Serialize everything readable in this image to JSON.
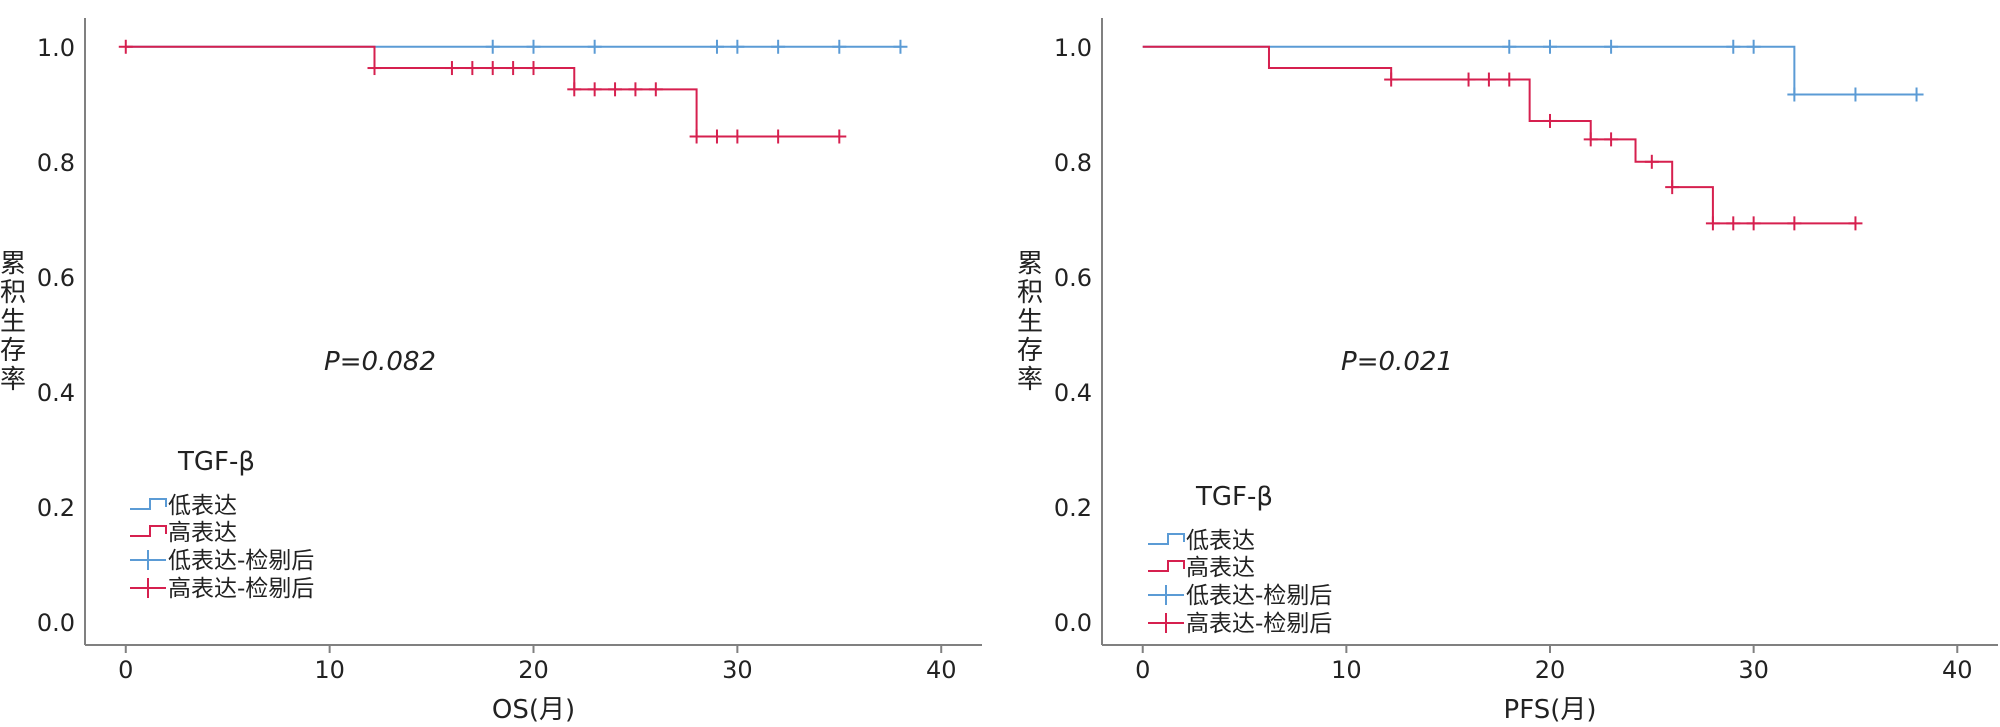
{
  "colors": {
    "low": "#5B9BD5",
    "high": "#D6204F",
    "axis": "#808080",
    "text": "#222222"
  },
  "chart_data": [
    {
      "type": "line",
      "subtype": "kaplan-meier",
      "title": "",
      "xlabel": "OS(月)",
      "ylabel": "累积生存率",
      "xlim": [
        -2,
        42
      ],
      "ylim": [
        -0.04,
        1.05
      ],
      "xticks": [
        "0",
        "10",
        "20",
        "30",
        "40"
      ],
      "yticks": [
        "0.0",
        "0.2",
        "0.4",
        "0.6",
        "0.8",
        "1.0"
      ],
      "pvalue_text": "P=0.082",
      "legend_title": "TGF-β",
      "legend_position": "bottom-left",
      "legend": [
        "低表达",
        "高表达",
        "低表达-检剔后",
        "高表达-检剔后"
      ],
      "series": [
        {
          "name": "低表达",
          "color_key": "low",
          "steps": [
            [
              0,
              1.0
            ],
            [
              38,
              1.0
            ]
          ],
          "censored": [
            [
              18,
              1.0
            ],
            [
              20,
              1.0
            ],
            [
              23,
              1.0
            ],
            [
              29,
              1.0
            ],
            [
              30,
              1.0
            ],
            [
              32,
              1.0
            ],
            [
              35,
              1.0
            ],
            [
              38,
              1.0
            ]
          ]
        },
        {
          "name": "高表达",
          "color_key": "high",
          "steps": [
            [
              0,
              1.0
            ],
            [
              12.2,
              0.963
            ],
            [
              22,
              0.926
            ],
            [
              28,
              0.844
            ],
            [
              35,
              0.844
            ]
          ],
          "censored": [
            [
              0,
              1.0
            ],
            [
              12.2,
              0.963
            ],
            [
              16,
              0.963
            ],
            [
              17,
              0.963
            ],
            [
              18,
              0.963
            ],
            [
              19,
              0.963
            ],
            [
              20,
              0.963
            ],
            [
              22,
              0.926
            ],
            [
              23,
              0.926
            ],
            [
              24,
              0.926
            ],
            [
              25,
              0.926
            ],
            [
              26,
              0.926
            ],
            [
              28,
              0.844
            ],
            [
              29,
              0.844
            ],
            [
              30,
              0.844
            ],
            [
              32,
              0.844
            ],
            [
              35,
              0.844
            ]
          ]
        }
      ]
    },
    {
      "type": "line",
      "subtype": "kaplan-meier",
      "title": "",
      "xlabel": "PFS(月)",
      "ylabel": "累积生存率",
      "xlim": [
        -2,
        42
      ],
      "ylim": [
        -0.04,
        1.05
      ],
      "xticks": [
        "0",
        "10",
        "20",
        "30",
        "40"
      ],
      "yticks": [
        "0.0",
        "0.2",
        "0.4",
        "0.6",
        "0.8",
        "1.0"
      ],
      "pvalue_text": "P=0.021",
      "legend_title": "TGF-β",
      "legend_position": "bottom-left",
      "legend": [
        "低表达",
        "高表达",
        "低表达-检剔后",
        "高表达-检剔后"
      ],
      "series": [
        {
          "name": "低表达",
          "color_key": "low",
          "steps": [
            [
              0,
              1.0
            ],
            [
              32,
              0.917
            ],
            [
              38,
              0.917
            ]
          ],
          "censored": [
            [
              18,
              1.0
            ],
            [
              20,
              1.0
            ],
            [
              23,
              1.0
            ],
            [
              29,
              1.0
            ],
            [
              30,
              1.0
            ],
            [
              32,
              0.917
            ],
            [
              35,
              0.917
            ],
            [
              38,
              0.917
            ]
          ]
        },
        {
          "name": "高表达",
          "color_key": "high",
          "steps": [
            [
              0,
              1.0
            ],
            [
              6.2,
              0.963
            ],
            [
              12.2,
              0.943
            ],
            [
              19,
              0.871
            ],
            [
              22,
              0.839
            ],
            [
              24.2,
              0.8
            ],
            [
              26,
              0.756
            ],
            [
              28,
              0.693
            ],
            [
              35,
              0.693
            ]
          ],
          "censored": [
            [
              12.2,
              0.943
            ],
            [
              16,
              0.943
            ],
            [
              17,
              0.943
            ],
            [
              18,
              0.943
            ],
            [
              20,
              0.871
            ],
            [
              22,
              0.839
            ],
            [
              23,
              0.839
            ],
            [
              25,
              0.8
            ],
            [
              26,
              0.756
            ],
            [
              28,
              0.693
            ],
            [
              29,
              0.693
            ],
            [
              30,
              0.693
            ],
            [
              32,
              0.693
            ],
            [
              35,
              0.693
            ]
          ]
        }
      ]
    }
  ]
}
